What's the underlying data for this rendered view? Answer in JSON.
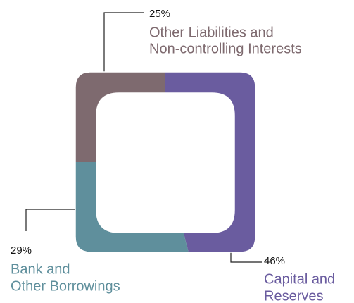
{
  "chart_data": {
    "type": "pie",
    "categories": [
      [
        "Capital and",
        "Reserves"
      ],
      [
        "Bank and",
        "Other Borrowings"
      ],
      [
        "Other Liabilities and",
        "Non-controlling Interests"
      ]
    ],
    "values": [
      46,
      29,
      25
    ],
    "value_labels": [
      "46%",
      "29%",
      "25%"
    ],
    "colors": [
      "#6a5c9f",
      "#5f8f9c",
      "#7e6a6f"
    ]
  }
}
